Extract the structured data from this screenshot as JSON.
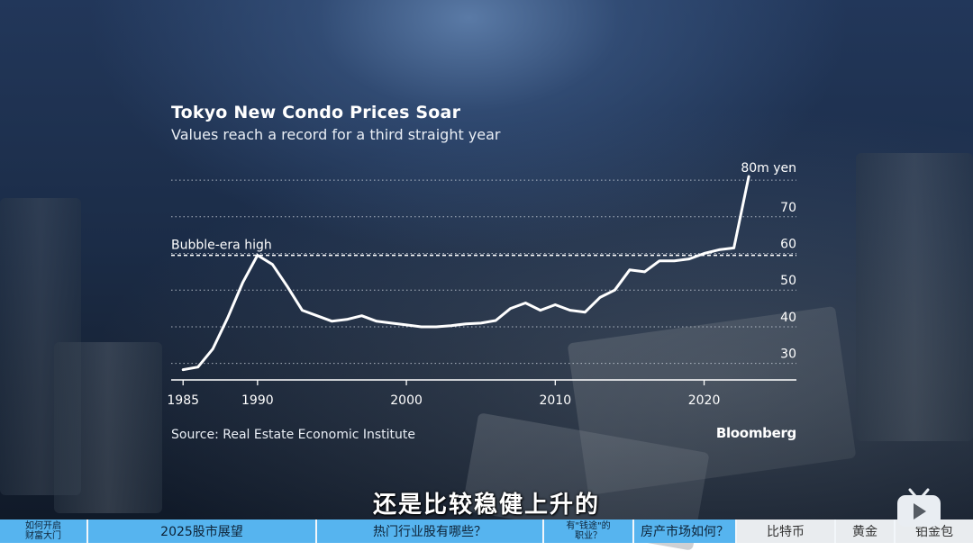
{
  "chart_data": {
    "type": "line",
    "title": "Tokyo New Condo Prices Soar",
    "subtitle": "Values reach a record for a third straight year",
    "xlabel": "",
    "ylabel": "",
    "xlim": [
      1984.2,
      2026.2
    ],
    "ylim": [
      25.5,
      81
    ],
    "x_ticks": [
      "1985",
      "1990",
      "2000",
      "2010",
      "2020"
    ],
    "y_ticks": [
      "30",
      "40",
      "50",
      "60",
      "70"
    ],
    "top_label": "80m yen",
    "reference_line": {
      "label": "Bubble-era high",
      "value": 59.5
    },
    "grid": "horizontal dotted",
    "series": [
      {
        "x": [
          1985,
          1986,
          1987,
          1988,
          1989,
          1990,
          1991,
          1992,
          1993,
          1994,
          1995,
          1996,
          1997,
          1998,
          1999,
          2000,
          2001,
          2002,
          2003,
          2004,
          2005,
          2006,
          2007,
          2008,
          2009,
          2010,
          2011,
          2012,
          2013,
          2014,
          2015,
          2016,
          2017,
          2018,
          2019,
          2020,
          2021,
          2022,
          2023
        ],
        "values": [
          28.3,
          29.0,
          34.0,
          42.5,
          52.0,
          59.5,
          57.0,
          51.0,
          44.5,
          43.0,
          41.5,
          42.0,
          43.0,
          41.5,
          41.0,
          40.5,
          40.0,
          40.0,
          40.3,
          40.8,
          41.0,
          41.7,
          45.0,
          46.5,
          44.5,
          46.0,
          44.5,
          44.0,
          48.0,
          50.0,
          55.5,
          55.0,
          58.0,
          58.0,
          58.5,
          60.0,
          61.0,
          61.5,
          81.0
        ]
      }
    ],
    "line_color": "#ffffff"
  },
  "source": "Source: Real Estate Economic Institute",
  "brand": "Bloomberg",
  "caption": "还是比较稳健上升的",
  "nav": [
    {
      "label": "如何开启\n财富大门"
    },
    {
      "label": "2025股市展望"
    },
    {
      "label": "热门行业股有哪些？"
    },
    {
      "label": "有\"钱途\"的\n职业？"
    },
    {
      "label": "房产市场如何？"
    },
    {
      "label": "比特币"
    },
    {
      "label": "黄金"
    },
    {
      "label": "铂金包"
    }
  ]
}
